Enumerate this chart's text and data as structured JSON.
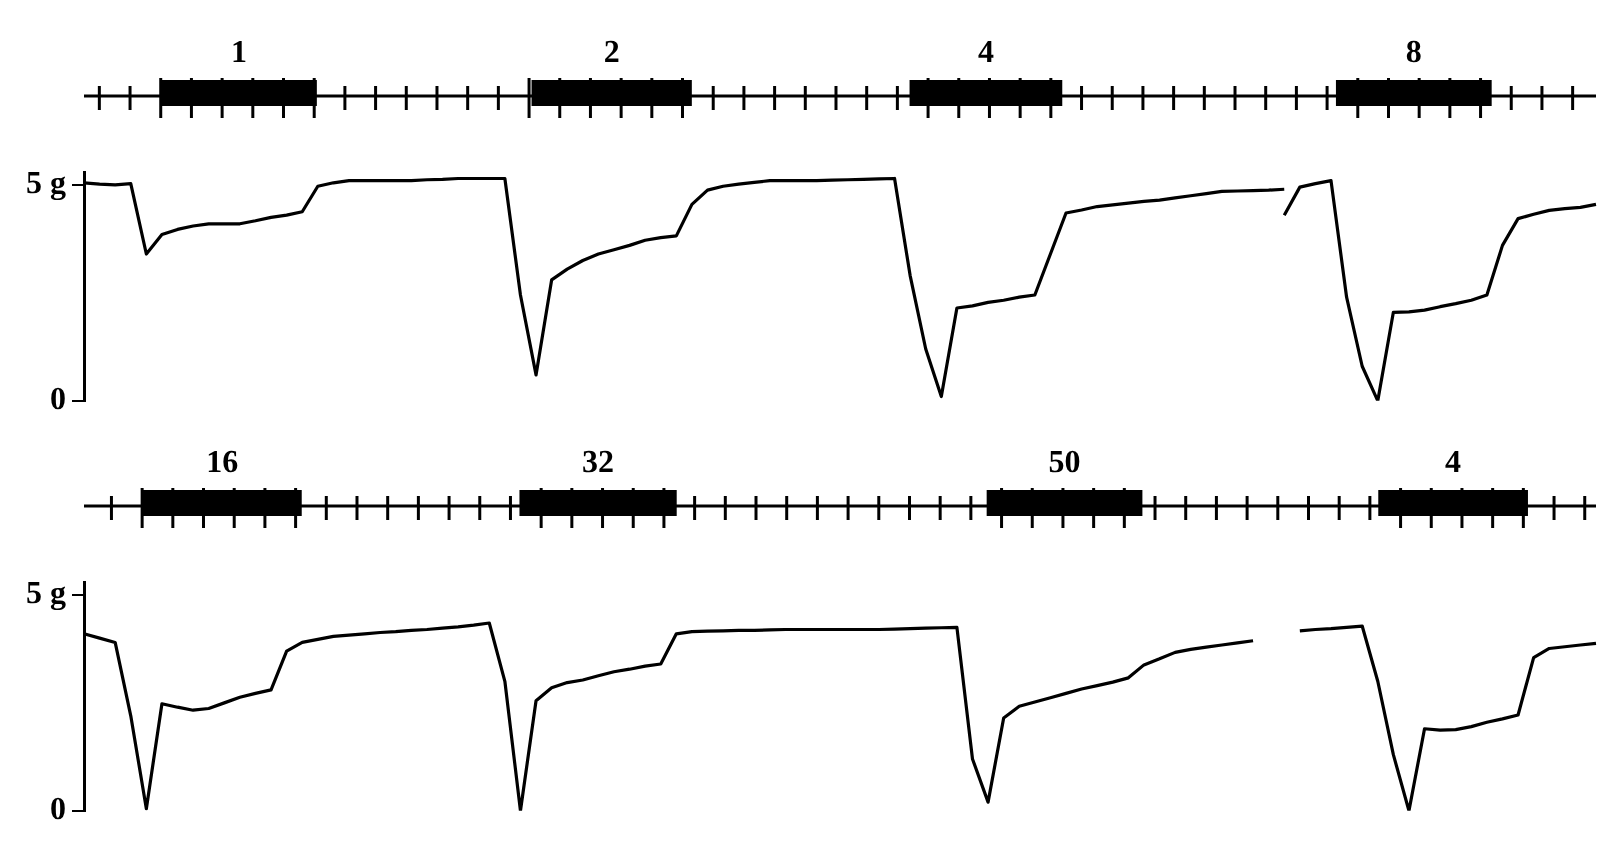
{
  "chart_data": [
    {
      "type": "line",
      "tick_labels": "y",
      "grid": false,
      "legend": false,
      "marker": "none",
      "line_style": "solid",
      "ylim": [
        0,
        5.3
      ],
      "yticks": [
        0,
        {
          "value": 5,
          "label": "5 g"
        }
      ],
      "annotations": [
        "1",
        "2",
        "4",
        "8"
      ],
      "categories": [
        null,
        null,
        null,
        null,
        null,
        null,
        null,
        null,
        null,
        null,
        null,
        null,
        null,
        null,
        null,
        null,
        null,
        null,
        null,
        null,
        null,
        null,
        null,
        null,
        null,
        null,
        null,
        null,
        null,
        null,
        null,
        null,
        null,
        null,
        null,
        null,
        null,
        null,
        null,
        null,
        null,
        null,
        null,
        null,
        null,
        null,
        null,
        null,
        null,
        null,
        null,
        null,
        null,
        null,
        null,
        null,
        null,
        null,
        null,
        null,
        null,
        null,
        null,
        null,
        null,
        null,
        null,
        null,
        null,
        null,
        null,
        null,
        null,
        null,
        null,
        null,
        null,
        null,
        null,
        null,
        null,
        null,
        null,
        null,
        null,
        null,
        null,
        null,
        null,
        null,
        null,
        null,
        null,
        null,
        null,
        null,
        null,
        null
      ],
      "series": [
        {
          "color": "#000000",
          "values": [
            5.05,
            5.02,
            5.0,
            5.03,
            3.4,
            3.85,
            3.97,
            4.05,
            4.1,
            4.1,
            4.1,
            4.17,
            4.25,
            4.3,
            4.38,
            4.97,
            5.05,
            5.1,
            5.1,
            5.1,
            5.1,
            5.1,
            5.12,
            5.13,
            5.15,
            5.15,
            5.15,
            5.15,
            2.45,
            0.6,
            2.8,
            3.05,
            3.25,
            3.4,
            3.5,
            3.6,
            3.72,
            3.78,
            3.82,
            4.55,
            4.88,
            4.97,
            5.02,
            5.06,
            5.1,
            5.1,
            5.1,
            5.1,
            5.11,
            5.12,
            5.13,
            5.14,
            5.15,
            2.9,
            1.2,
            0.1,
            2.15,
            2.2,
            2.28,
            2.33,
            2.4,
            2.45,
            3.4,
            4.35,
            4.42,
            4.5,
            4.54,
            4.58,
            4.62,
            4.65,
            4.7,
            4.75,
            4.8,
            4.85,
            4.86,
            4.87,
            4.88,
            4.9,
            null,
            null,
            null,
            null,
            null,
            null,
            null,
            null,
            null,
            null,
            null,
            null,
            null,
            null,
            null,
            null,
            null,
            null,
            null,
            null
          ]
        },
        {
          "color": "#000000",
          "values": [
            null,
            null,
            null,
            null,
            null,
            null,
            null,
            null,
            null,
            null,
            null,
            null,
            null,
            null,
            null,
            null,
            null,
            null,
            null,
            null,
            null,
            null,
            null,
            null,
            null,
            null,
            null,
            null,
            null,
            null,
            null,
            null,
            null,
            null,
            null,
            null,
            null,
            null,
            null,
            null,
            null,
            null,
            null,
            null,
            null,
            null,
            null,
            null,
            null,
            null,
            null,
            null,
            null,
            null,
            null,
            null,
            null,
            null,
            null,
            null,
            null,
            null,
            null,
            null,
            null,
            null,
            null,
            null,
            null,
            null,
            null,
            null,
            null,
            null,
            null,
            null,
            null,
            4.3,
            4.95,
            5.03,
            5.1,
            2.4,
            0.8,
            0.0,
            2.05,
            2.06,
            2.1,
            2.18,
            2.25,
            2.33,
            2.45,
            3.6,
            4.22,
            4.32,
            4.41,
            4.45,
            4.48,
            4.55
          ]
        }
      ]
    },
    {
      "type": "line",
      "tick_labels": "y",
      "grid": false,
      "legend": false,
      "marker": "none",
      "line_style": "solid",
      "ylim": [
        0,
        5.3
      ],
      "yticks": [
        0,
        {
          "value": 5,
          "label": "5 g"
        }
      ],
      "annotations": [
        "16",
        "32",
        "50",
        "4"
      ],
      "categories": [
        null,
        null,
        null,
        null,
        null,
        null,
        null,
        null,
        null,
        null,
        null,
        null,
        null,
        null,
        null,
        null,
        null,
        null,
        null,
        null,
        null,
        null,
        null,
        null,
        null,
        null,
        null,
        null,
        null,
        null,
        null,
        null,
        null,
        null,
        null,
        null,
        null,
        null,
        null,
        null,
        null,
        null,
        null,
        null,
        null,
        null,
        null,
        null,
        null,
        null,
        null,
        null,
        null,
        null,
        null,
        null,
        null,
        null,
        null,
        null,
        null,
        null,
        null,
        null,
        null,
        null,
        null,
        null,
        null,
        null,
        null,
        null,
        null,
        null,
        null,
        null,
        null,
        null,
        null,
        null,
        null,
        null,
        null,
        null,
        null,
        null,
        null,
        null,
        null,
        null,
        null,
        null,
        null,
        null,
        null,
        null,
        null,
        null
      ],
      "series": [
        {
          "color": "#000000",
          "values": [
            4.1,
            4.0,
            3.9,
            2.2,
            0.05,
            2.48,
            2.4,
            2.33,
            2.37,
            2.5,
            2.63,
            2.72,
            2.8,
            3.7,
            3.9,
            3.97,
            4.04,
            4.07,
            4.1,
            4.13,
            4.15,
            4.18,
            4.2,
            4.23,
            4.26,
            4.3,
            4.35,
            3.0,
            0.0,
            2.55,
            2.85,
            2.97,
            3.03,
            3.13,
            3.22,
            3.28,
            3.35,
            3.4,
            4.1,
            4.15,
            4.16,
            4.17,
            4.18,
            4.18,
            4.19,
            4.2,
            4.2,
            4.2,
            4.2,
            4.2,
            4.2,
            4.2,
            4.21,
            4.22,
            4.23,
            4.24,
            4.25,
            1.2,
            0.2,
            2.15,
            2.42,
            2.52,
            2.62,
            2.72,
            2.82,
            2.9,
            2.98,
            3.08,
            3.38,
            3.52,
            3.67,
            3.74,
            3.79,
            3.84,
            3.89,
            3.94,
            null,
            null,
            null,
            null,
            null,
            null,
            null,
            null,
            null,
            null,
            null,
            null,
            null,
            null,
            null,
            null,
            null,
            null,
            null,
            null,
            null,
            null
          ]
        },
        {
          "color": "#000000",
          "values": [
            null,
            null,
            null,
            null,
            null,
            null,
            null,
            null,
            null,
            null,
            null,
            null,
            null,
            null,
            null,
            null,
            null,
            null,
            null,
            null,
            null,
            null,
            null,
            null,
            null,
            null,
            null,
            null,
            null,
            null,
            null,
            null,
            null,
            null,
            null,
            null,
            null,
            null,
            null,
            null,
            null,
            null,
            null,
            null,
            null,
            null,
            null,
            null,
            null,
            null,
            null,
            null,
            null,
            null,
            null,
            null,
            null,
            null,
            null,
            null,
            null,
            null,
            null,
            null,
            null,
            null,
            null,
            null,
            null,
            null,
            null,
            null,
            null,
            null,
            null,
            null,
            null,
            null,
            4.17,
            4.2,
            4.22,
            4.25,
            4.28,
            3.0,
            1.3,
            0.0,
            1.9,
            1.87,
            1.88,
            1.95,
            2.05,
            2.13,
            2.22,
            3.55,
            3.76,
            3.8,
            3.84,
            3.88
          ]
        }
      ]
    }
  ]
}
